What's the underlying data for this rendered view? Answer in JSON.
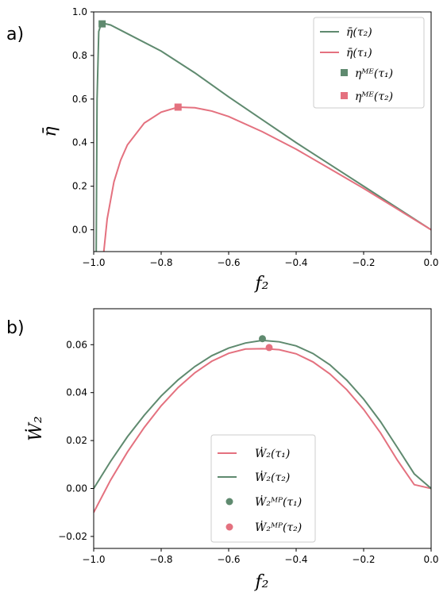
{
  "colors": {
    "green": "#5f8a6f",
    "pink": "#e4717f"
  },
  "chart_data": [
    {
      "panel_label": "a)",
      "type": "line",
      "xlabel": "f₂",
      "ylabel": "η̄",
      "xlim": [
        -1.0,
        0.0
      ],
      "ylim": [
        -0.1,
        1.0
      ],
      "xticks": [
        "−1.0",
        "−0.8",
        "−0.6",
        "−0.4",
        "−0.2",
        "0.0"
      ],
      "yticks": [
        "0.0",
        "0.2",
        "0.4",
        "0.6",
        "0.8",
        "1.0"
      ],
      "grid": false,
      "legend_position": "top-right",
      "legend": [
        "η̄(τ₂)",
        "η̄(τ₁)",
        "ηᴹᴱ(τ₁)",
        "ηᴹᴱ(τ₂)"
      ],
      "series": [
        {
          "name": "η̄(τ₂)",
          "color": "green",
          "x": [
            -0.9925,
            -0.99,
            -0.985,
            -0.98,
            -0.975,
            -0.97,
            -0.95,
            -0.9,
            -0.8,
            -0.7,
            -0.6,
            -0.5,
            -0.4,
            -0.3,
            -0.2,
            -0.1,
            0.0
          ],
          "y": [
            -0.1,
            0.6,
            0.91,
            0.935,
            0.945,
            0.947,
            0.94,
            0.9,
            0.82,
            0.72,
            0.61,
            0.505,
            0.4,
            0.3,
            0.2,
            0.1,
            0.0
          ]
        },
        {
          "name": "η̄(τ₁)",
          "color": "pink",
          "x": [
            -0.97,
            -0.96,
            -0.94,
            -0.92,
            -0.9,
            -0.85,
            -0.8,
            -0.75,
            -0.7,
            -0.65,
            -0.6,
            -0.5,
            -0.4,
            -0.3,
            -0.2,
            -0.1,
            0.0
          ],
          "y": [
            -0.1,
            0.05,
            0.22,
            0.32,
            0.39,
            0.49,
            0.54,
            0.563,
            0.56,
            0.545,
            0.52,
            0.45,
            0.37,
            0.28,
            0.19,
            0.095,
            0.0
          ]
        }
      ],
      "markers": [
        {
          "name": "ηᴹᴱ(τ₁)",
          "shape": "square",
          "color": "green",
          "x": -0.975,
          "y": 0.945
        },
        {
          "name": "ηᴹᴱ(τ₂)",
          "shape": "square",
          "color": "pink",
          "x": -0.75,
          "y": 0.563
        }
      ]
    },
    {
      "panel_label": "b)",
      "type": "line",
      "xlabel": "f₂",
      "ylabel": "Ẇ₂",
      "xlim": [
        -1.0,
        0.0
      ],
      "ylim": [
        -0.025,
        0.075
      ],
      "xticks": [
        "−1.0",
        "−0.8",
        "−0.6",
        "−0.4",
        "−0.2",
        "0.0"
      ],
      "yticks": [
        "−0.02",
        "0.00",
        "0.02",
        "0.04",
        "0.06"
      ],
      "grid": false,
      "legend_position": "lower-center",
      "legend": [
        "Ẇ₂(τ₁)",
        "Ẇ₂(τ₂)",
        "Ẇ₂ᴹᴾ(τ₁)",
        "Ẇ₂ᴹᴾ(τ₂)"
      ],
      "series": [
        {
          "name": "Ẇ₂(τ₁)",
          "color": "pink",
          "x": [
            -1.0,
            -0.95,
            -0.9,
            -0.85,
            -0.8,
            -0.75,
            -0.7,
            -0.65,
            -0.6,
            -0.55,
            -0.5,
            -0.48,
            -0.45,
            -0.4,
            -0.35,
            -0.3,
            -0.25,
            -0.2,
            -0.15,
            -0.1,
            -0.05,
            0.0
          ],
          "y": [
            -0.01,
            0.0035,
            0.0152,
            0.0255,
            0.0345,
            0.0421,
            0.0483,
            0.0531,
            0.0564,
            0.0582,
            0.0583,
            0.0582,
            0.0579,
            0.0562,
            0.0528,
            0.0478,
            0.0412,
            0.033,
            0.0232,
            0.0118,
            0.0016,
            0.0
          ]
        },
        {
          "name": "Ẇ₂(τ₂)",
          "color": "green",
          "x": [
            -1.0,
            -0.95,
            -0.9,
            -0.85,
            -0.8,
            -0.75,
            -0.7,
            -0.65,
            -0.6,
            -0.55,
            -0.5,
            -0.45,
            -0.4,
            -0.35,
            -0.3,
            -0.25,
            -0.2,
            -0.15,
            -0.1,
            -0.05,
            0.0
          ],
          "y": [
            0.0,
            0.0113,
            0.0216,
            0.0306,
            0.0386,
            0.0453,
            0.0509,
            0.0554,
            0.0586,
            0.0607,
            0.0618,
            0.0612,
            0.0595,
            0.0563,
            0.0516,
            0.0452,
            0.0373,
            0.0279,
            0.0171,
            0.0061,
            0.0
          ]
        }
      ],
      "markers": [
        {
          "name": "Ẇ₂ᴹᴾ(τ₁)",
          "shape": "circle",
          "color": "green",
          "x": -0.5,
          "y": 0.0625
        },
        {
          "name": "Ẇ₂ᴹᴾ(τ₂)",
          "shape": "circle",
          "color": "pink",
          "x": -0.48,
          "y": 0.0588
        }
      ]
    }
  ]
}
